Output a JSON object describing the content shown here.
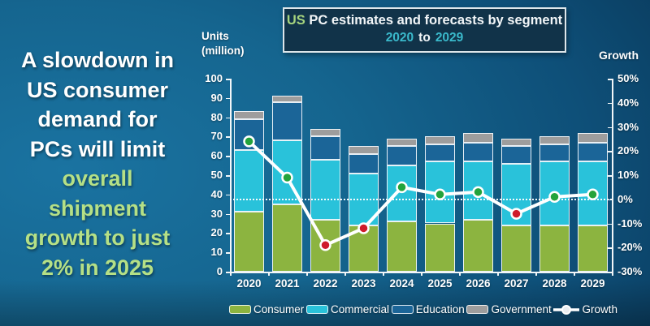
{
  "message": {
    "white_lines": [
      "A slowdown in",
      "US consumer",
      "demand for",
      "PCs will limit"
    ],
    "green_lines": [
      "overall",
      "shipment",
      "growth to just",
      "2% in 2025"
    ]
  },
  "title": {
    "highlight": "US",
    "rest": "PC estimates and forecasts by segment",
    "range_start": "2020",
    "range_mid": "to",
    "range_end": "2029"
  },
  "axes": {
    "left_title_line1": "Units",
    "left_title_line2": "(million)",
    "right_title": "Growth",
    "left_ticks": [
      100,
      90,
      80,
      70,
      60,
      50,
      40,
      30,
      20,
      10,
      0
    ],
    "right_ticks": [
      "50%",
      "40%",
      "30%",
      "20%",
      "10%",
      "0%",
      "-10%",
      "-20%",
      "-30%"
    ]
  },
  "legend": {
    "items": [
      {
        "label": "Consumer",
        "color": "#8cb440",
        "type": "swatch"
      },
      {
        "label": "Commercial",
        "color": "#29c2da",
        "type": "swatch"
      },
      {
        "label": "Education",
        "color": "#1b6598",
        "type": "swatch"
      },
      {
        "label": "Government",
        "color": "#9d9d9d",
        "type": "swatch"
      },
      {
        "label": "Growth",
        "color": "#ffffff",
        "type": "line-marker"
      }
    ]
  },
  "colors": {
    "consumer": "#8cb440",
    "commercial": "#29c2da",
    "education": "#1b6598",
    "government": "#9d9d9d",
    "growth_line": "#ffffff",
    "marker_positive": "#23a33b",
    "marker_negative": "#cf1b2b",
    "message_green": "#b5e086",
    "title_teal": "#3ab9cb",
    "title_green": "#a6d47e"
  },
  "chart_data": {
    "type": "bar",
    "variant": "stacked-column-with-line",
    "title": "US PC estimates and forecasts by segment 2020 to 2029",
    "categories": [
      "2020",
      "2021",
      "2022",
      "2023",
      "2024",
      "2025",
      "2026",
      "2027",
      "2028",
      "2029"
    ],
    "unit_left": "Units (million)",
    "unit_right": "Growth %",
    "series": [
      {
        "name": "Consumer",
        "color": "#8cb440",
        "values": [
          31,
          35,
          27,
          24,
          26,
          25,
          27,
          24,
          24,
          24
        ]
      },
      {
        "name": "Commercial",
        "color": "#29c2da",
        "values": [
          32,
          33,
          31,
          27,
          29,
          32,
          30,
          32,
          33,
          33
        ]
      },
      {
        "name": "Education",
        "color": "#1b6598",
        "values": [
          16,
          20,
          12,
          10,
          10,
          9,
          10,
          9,
          9,
          10
        ]
      },
      {
        "name": "Government",
        "color": "#9d9d9d",
        "values": [
          4,
          3,
          4,
          4,
          4,
          4,
          5,
          4,
          4,
          5
        ]
      }
    ],
    "line": {
      "name": "Growth",
      "axis": "right",
      "unit": "%",
      "line_color": "#ffffff",
      "values": [
        24,
        9,
        -19,
        -12,
        5,
        2,
        3,
        -6,
        1,
        2
      ],
      "marker_colors": [
        "#23a33b",
        "#23a33b",
        "#cf1b2b",
        "#cf1b2b",
        "#23a33b",
        "#23a33b",
        "#23a33b",
        "#cf1b2b",
        "#23a33b",
        "#23a33b"
      ]
    },
    "ylim_left": [
      0,
      100
    ],
    "ylim_right": [
      -30,
      50
    ],
    "grid": false,
    "zero_line_dotted": true,
    "legend_position": "bottom"
  }
}
